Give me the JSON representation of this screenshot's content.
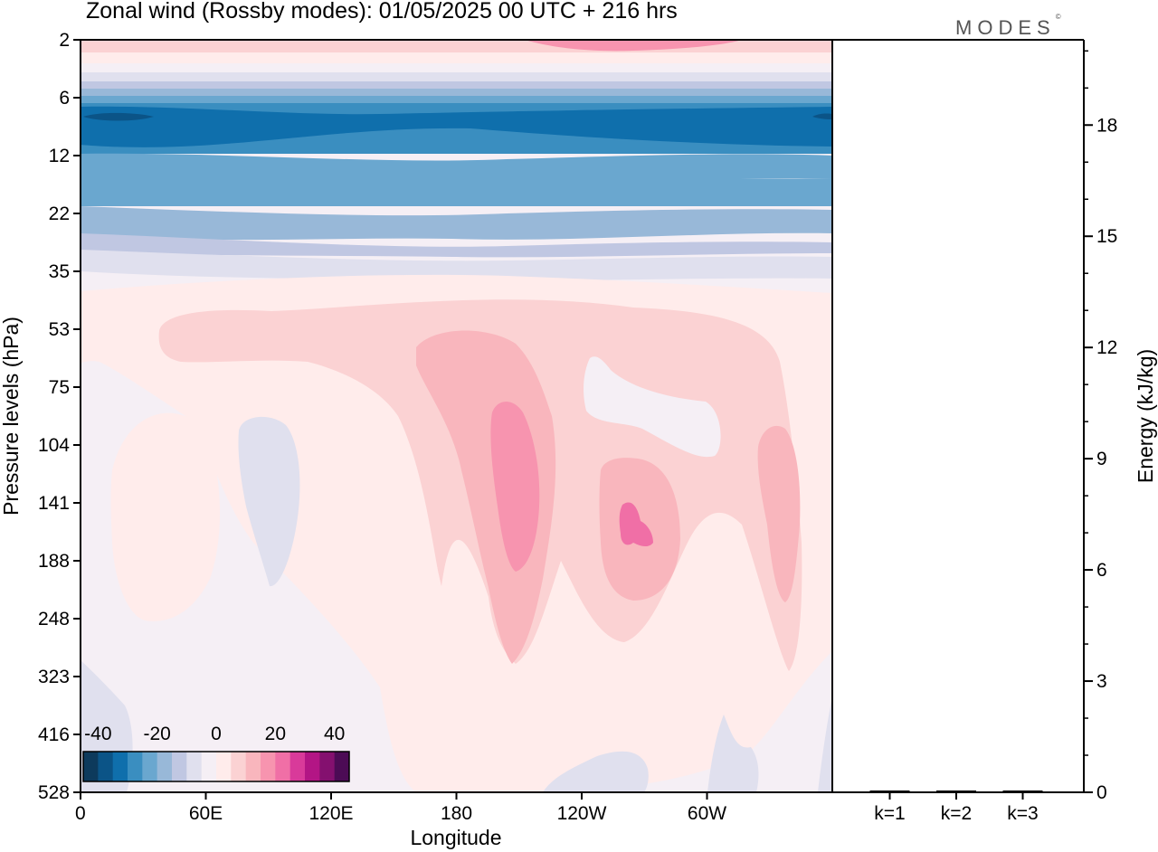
{
  "title": "Zonal wind (Rossby modes):  01/05/2025  00 UTC  + 216 hrs",
  "logo": "MODES",
  "logo_mark": "©",
  "chart_data": [
    {
      "type": "heatmap",
      "title": "Zonal wind (Rossby modes):  01/05/2025  00 UTC  + 216 hrs",
      "xlabel": "Longitude",
      "ylabel": "Pressure levels (hPa)",
      "x_ticks": [
        "0",
        "60E",
        "120E",
        "180",
        "120W",
        "60W"
      ],
      "y_ticks": [
        "2",
        "6",
        "12",
        "22",
        "35",
        "53",
        "75",
        "104",
        "141",
        "188",
        "248",
        "323",
        "416",
        "528"
      ],
      "y_scale": "log, pressure decreasing upward",
      "colorbar": {
        "ticks": [
          "-40",
          "-20",
          "0",
          "20",
          "40"
        ],
        "range": [
          -45,
          45
        ],
        "colors": [
          "#0d3a5c",
          "#0b5487",
          "#0f6fac",
          "#3a8ec0",
          "#6aa7cf",
          "#98b8d8",
          "#c0c7e2",
          "#e0e0ee",
          "#f5eff5",
          "#ffeceb",
          "#fbd2d3",
          "#f9b6bd",
          "#f794af",
          "#f06fa6",
          "#d93a9a",
          "#b31585",
          "#84106f",
          "#4c0b55"
        ]
      },
      "features": [
        {
          "description": "strong easterly band",
          "pressure_hPa": [
            6,
            12
          ],
          "value_approx": -35
        },
        {
          "description": "weak westerly near top",
          "pressure_hPa": [
            2,
            3
          ],
          "value_approx": 15
        },
        {
          "description": "westerly maximum",
          "longitude": "160W",
          "pressure_hPa": [
            90,
            200
          ],
          "value_approx": 20
        },
        {
          "description": "westerly maximum",
          "longitude": "100W",
          "pressure_hPa": [
            130,
            170
          ],
          "value_approx": 25
        }
      ]
    },
    {
      "type": "bar",
      "categories": [
        "k=1",
        "k=2",
        "k=3"
      ],
      "values": [
        0.02,
        0.01,
        0.01
      ],
      "ylabel": "Energy (kJ/kg)",
      "y_ticks": [
        "0",
        "3",
        "6",
        "9",
        "12",
        "15",
        "18"
      ],
      "ylim": [
        0,
        20.3
      ]
    }
  ]
}
